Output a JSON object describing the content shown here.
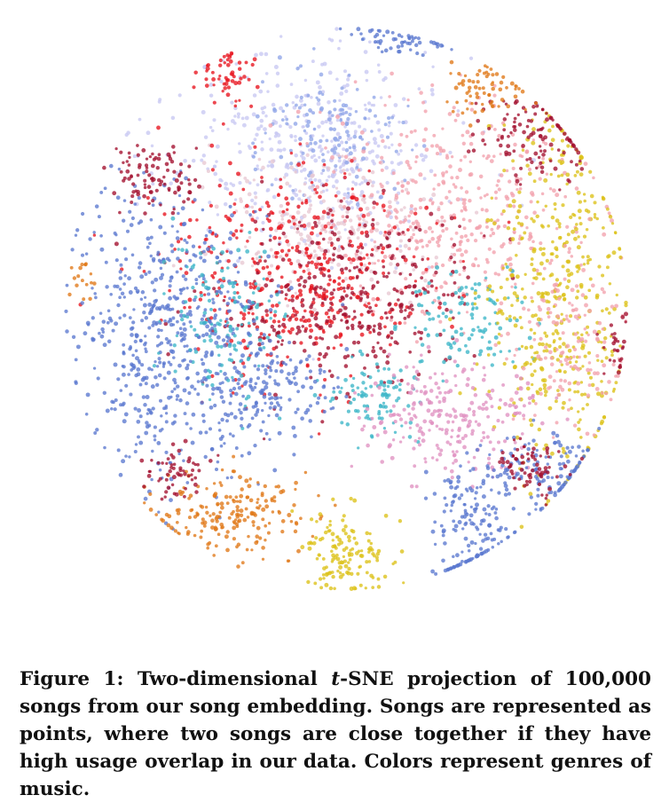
{
  "figure": {
    "caption": {
      "label": "Figure 1:",
      "before_italic": "Two-dimensional ",
      "italic": "t",
      "after_italic": "-SNE projection of 100,000 songs from our song embedding. Songs are represented as points, where two songs are close together if they have high usage overlap in our data. Colors represent genres of music."
    }
  },
  "chart_data": {
    "type": "scatter",
    "title": "",
    "xlabel": "",
    "ylabel": "",
    "axes_visible": false,
    "grid": false,
    "legend": "none",
    "n_points_described": 100000,
    "genre_colors": [
      "#5b78cf",
      "#8fa5e8",
      "#c8c8f2",
      "#e8141f",
      "#a3102e",
      "#f2a2ad",
      "#e8c8d2",
      "#dcc218",
      "#e07818",
      "#3cb6c8",
      "#e092c2"
    ],
    "clusters": [
      {
        "color": "#c8c8f2",
        "cx": -0.1,
        "cy": 0.55,
        "sx": 0.24,
        "sy": 0.17,
        "weight": 1.6
      },
      {
        "color": "#8fa5e8",
        "cx": -0.05,
        "cy": 0.62,
        "sx": 0.13,
        "sy": 0.1,
        "weight": 0.5
      },
      {
        "color": "#e8c8d2",
        "cx": -0.08,
        "cy": 0.28,
        "sx": 0.2,
        "sy": 0.12,
        "weight": 0.9
      },
      {
        "color": "#f2a2ad",
        "cx": 0.38,
        "cy": 0.35,
        "sx": 0.22,
        "sy": 0.2,
        "weight": 1.6
      },
      {
        "color": "#e8141f",
        "cx": -0.18,
        "cy": 0.12,
        "sx": 0.22,
        "sy": 0.17,
        "weight": 1.6
      },
      {
        "color": "#a3102e",
        "cx": -0.02,
        "cy": 0.02,
        "sx": 0.22,
        "sy": 0.16,
        "weight": 1.3
      },
      {
        "color": "#5b78cf",
        "cx": -0.62,
        "cy": -0.08,
        "sx": 0.16,
        "sy": 0.24,
        "weight": 2.1
      },
      {
        "color": "#3cb6c8",
        "cx": -0.44,
        "cy": -0.04,
        "sx": 0.1,
        "sy": 0.14,
        "weight": 0.5
      },
      {
        "color": "#3cb6c8",
        "cx": 0.1,
        "cy": -0.3,
        "sx": 0.08,
        "sy": 0.07,
        "weight": 0.35
      },
      {
        "color": "#3cb6c8",
        "cx": 0.42,
        "cy": -0.04,
        "sx": 0.1,
        "sy": 0.09,
        "weight": 0.4
      },
      {
        "color": "#5b78cf",
        "cx": -0.28,
        "cy": -0.28,
        "sx": 0.12,
        "sy": 0.1,
        "weight": 0.6
      },
      {
        "color": "#dcc218",
        "cx": 0.75,
        "cy": 0.05,
        "sx": 0.12,
        "sy": 0.3,
        "weight": 1.6
      },
      {
        "color": "#f2a2ad",
        "cx": 0.78,
        "cy": -0.12,
        "sx": 0.1,
        "sy": 0.15,
        "weight": 0.5
      },
      {
        "color": "#e092c2",
        "cx": 0.36,
        "cy": -0.38,
        "sx": 0.15,
        "sy": 0.1,
        "weight": 0.9
      },
      {
        "color": "#e07818",
        "cx": -0.42,
        "cy": -0.72,
        "sx": 0.14,
        "sy": 0.07,
        "weight": 0.7
      },
      {
        "color": "#dcc218",
        "cx": 0.0,
        "cy": -0.86,
        "sx": 0.08,
        "sy": 0.07,
        "weight": 0.5
      },
      {
        "color": "#5b78cf",
        "cx": 0.45,
        "cy": -0.74,
        "sx": 0.07,
        "sy": 0.13,
        "weight": 0.6
      },
      {
        "color": "#5b78cf",
        "cx": 0.7,
        "cy": -0.58,
        "sx": 0.1,
        "sy": 0.07,
        "weight": 0.45
      },
      {
        "color": "#a3102e",
        "cx": 0.65,
        "cy": -0.56,
        "sx": 0.07,
        "sy": 0.05,
        "weight": 0.25
      },
      {
        "color": "#a3102e",
        "cx": -0.68,
        "cy": 0.46,
        "sx": 0.08,
        "sy": 0.06,
        "weight": 0.35
      },
      {
        "color": "#a3102e",
        "cx": 0.66,
        "cy": 0.6,
        "sx": 0.1,
        "sy": 0.07,
        "weight": 0.4
      },
      {
        "color": "#e8141f",
        "cx": -0.42,
        "cy": 0.82,
        "sx": 0.05,
        "sy": 0.05,
        "weight": 0.2
      },
      {
        "color": "#5b78cf",
        "cx": 0.18,
        "cy": 0.94,
        "sx": 0.09,
        "sy": 0.03,
        "weight": 0.2
      },
      {
        "color": "#e07818",
        "cx": 0.48,
        "cy": 0.76,
        "sx": 0.07,
        "sy": 0.05,
        "weight": 0.25
      },
      {
        "color": "#a3102e",
        "cx": 0.95,
        "cy": -0.14,
        "sx": 0.03,
        "sy": 0.06,
        "weight": 0.1
      },
      {
        "color": "#a3102e",
        "cx": -0.58,
        "cy": -0.58,
        "sx": 0.06,
        "sy": 0.05,
        "weight": 0.2
      },
      {
        "color": "#e07818",
        "cx": -0.92,
        "cy": 0.1,
        "sx": 0.02,
        "sy": 0.05,
        "weight": 0.06
      }
    ],
    "total_sample_points": 5200,
    "seed": 7
  }
}
